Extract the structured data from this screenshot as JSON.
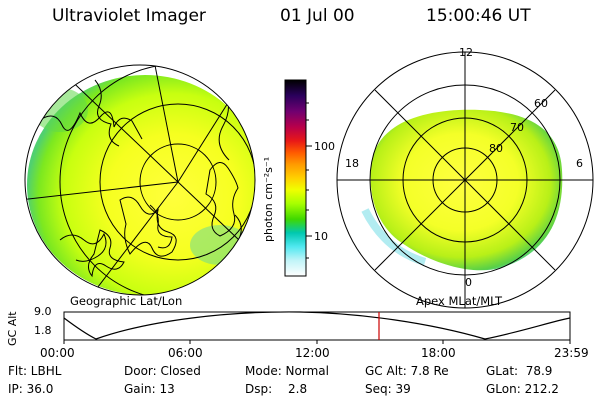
{
  "header": {
    "instrument": "Ultraviolet Imager",
    "date": "01 Jul 00",
    "time": "15:00:46 UT"
  },
  "left_panel": {
    "caption": "Geographic Lat/Lon"
  },
  "right_panel": {
    "caption": "Apex MLat/MLT",
    "mlt_labels": [
      "12",
      "18",
      "6",
      "0"
    ],
    "mlat_labels": [
      "60",
      "70",
      "80"
    ]
  },
  "colorbar": {
    "unit": "photon cm⁻²s⁻¹",
    "ticks": [
      "100",
      "10"
    ],
    "colors": [
      "#000000",
      "#24005a",
      "#6a0074",
      "#b0004d",
      "#e00020",
      "#ff3c00",
      "#ff8c00",
      "#ffc800",
      "#e8ff00",
      "#9cff00",
      "#3cd800",
      "#00c8b0",
      "#55e8f0",
      "#b8f4f8",
      "#ffffff"
    ]
  },
  "orbit": {
    "ylabel": "GC Alt",
    "y_ticks": [
      "9.0",
      "1.8"
    ],
    "x_ticks": [
      "00:00",
      "06:00",
      "12:00",
      "18:00",
      "23:59"
    ],
    "current_time_marker": "15:00:46",
    "marker_color": "#cc0000"
  },
  "status": {
    "flt": "Flt: LBHL",
    "ip": "IP: 36.0",
    "door": "Door: Closed",
    "gain": "Gain: 13",
    "mode": "Mode: Normal",
    "dsp_label": "Dsp:",
    "dsp_value": "2.8",
    "gc_alt": "GC Alt: 7.8 Re",
    "seq": "Seq: 39",
    "glat": "GLat:  78.9",
    "glon": "GLon: 212.2"
  }
}
